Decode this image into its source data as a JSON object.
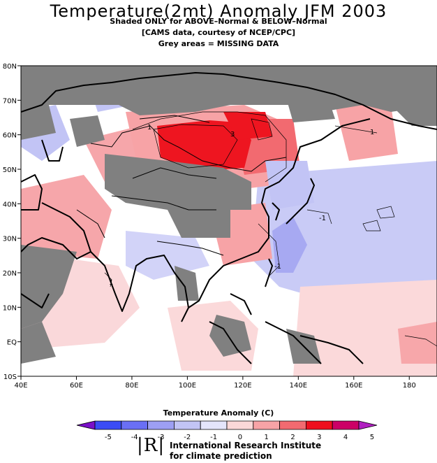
{
  "title": "Temperature(2mt) Anomaly JFM 2003",
  "subtitle_lines": [
    "Shaded ONLY for ABOVE–Normal & BELOW–Normal",
    "[CAMS data, courtesy of NCEP/CPC]",
    "Grey areas = MISSING DATA"
  ],
  "map": {
    "lon_range": [
      40,
      190
    ],
    "lat_range": [
      -10,
      80
    ],
    "x_ticks": [
      "40E",
      "60E",
      "80E",
      "100E",
      "120E",
      "140E",
      "160E",
      "180"
    ],
    "y_ticks": [
      "80N",
      "70N",
      "60N",
      "50N",
      "40N",
      "30N",
      "20N",
      "10N",
      "EQ",
      "10S"
    ],
    "contour_labels": [
      "1",
      "3",
      "1",
      "-1",
      "-1",
      "1"
    ],
    "colors": {
      "missing": "#808080",
      "coast": "#000000"
    }
  },
  "colorbar": {
    "title": "Temperature  Anomaly (C)",
    "tick_labels": [
      "-5",
      "-4",
      "-3",
      "-2",
      "-1",
      "0",
      "1",
      "2",
      "3",
      "4",
      "5"
    ],
    "colors": [
      "#7a10c8",
      "#3b4cf5",
      "#6a6ff5",
      "#9d9ff3",
      "#c2c4f5",
      "#e4e5fb",
      "#fbd8d8",
      "#f7a3a6",
      "#f26a70",
      "#ee0f1e",
      "#cc0066",
      "#b020c0"
    ]
  },
  "footer": {
    "logo_text": "|R|",
    "org_line1": "International Research Institute",
    "org_line2": "for climate prediction"
  }
}
